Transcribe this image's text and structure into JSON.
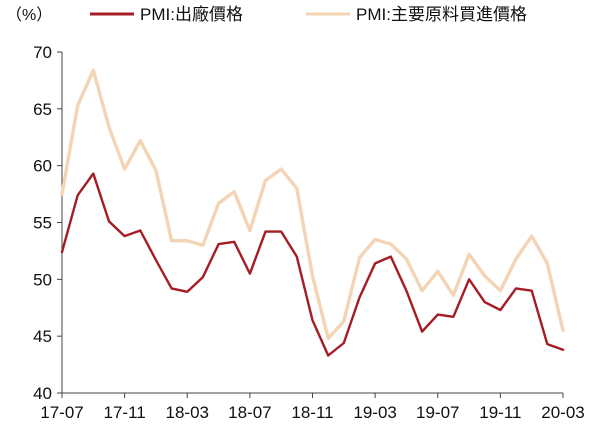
{
  "chart_data": {
    "type": "line",
    "unit_label": "（%）",
    "x": [
      "17-07",
      "17-08",
      "17-09",
      "17-10",
      "17-11",
      "17-12",
      "18-01",
      "18-02",
      "18-03",
      "18-04",
      "18-05",
      "18-06",
      "18-07",
      "18-08",
      "18-09",
      "18-10",
      "18-11",
      "18-12",
      "19-01",
      "19-02",
      "19-03",
      "19-04",
      "19-05",
      "19-06",
      "19-07",
      "19-08",
      "19-09",
      "19-10",
      "19-11",
      "19-12",
      "20-01",
      "20-02",
      "20-03"
    ],
    "x_tick_labels": [
      "17-07",
      "17-11",
      "18-03",
      "18-07",
      "18-11",
      "19-03",
      "19-07",
      "19-11",
      "20-03"
    ],
    "ylim": [
      40,
      70
    ],
    "y_ticks": [
      40,
      45,
      50,
      55,
      60,
      65,
      70
    ],
    "legend_position": "top",
    "grid": false,
    "series": [
      {
        "name": "PMI:出廠價格",
        "color": "#a51c24",
        "values": [
          52.4,
          57.4,
          59.3,
          55.1,
          53.8,
          54.3,
          51.7,
          49.2,
          48.9,
          50.2,
          53.1,
          53.3,
          50.5,
          54.2,
          54.2,
          52.0,
          46.4,
          43.3,
          44.4,
          48.4,
          51.4,
          52.0,
          49.0,
          45.4,
          46.9,
          46.7,
          50.0,
          48.0,
          47.3,
          49.2,
          49.0,
          44.3,
          43.8
        ]
      },
      {
        "name": "PMI:主要原料買進價格",
        "color": "#f3d4b5",
        "values": [
          57.5,
          65.3,
          68.4,
          63.4,
          59.7,
          62.2,
          59.6,
          53.4,
          53.4,
          53.0,
          56.7,
          57.7,
          54.3,
          58.7,
          59.7,
          58.0,
          50.3,
          44.8,
          46.3,
          51.9,
          53.5,
          53.1,
          51.8,
          49.0,
          50.7,
          48.6,
          52.2,
          50.3,
          49.0,
          51.8,
          53.8,
          51.4,
          45.5
        ]
      }
    ]
  }
}
